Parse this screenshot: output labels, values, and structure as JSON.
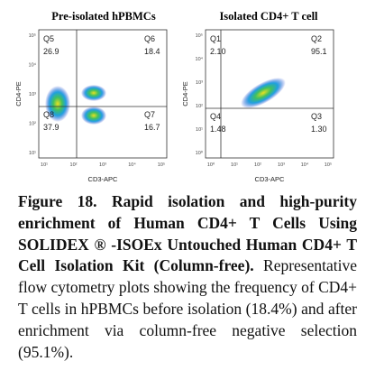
{
  "panels": [
    {
      "title": "Pre-isolated hPBMCs",
      "x_label": "CD3-APC",
      "y_label": "CD4-PE",
      "x_ticks": [
        "10¹",
        "10²",
        "10³",
        "10⁴",
        "10⁵"
      ],
      "y_ticks": [
        "10¹",
        "10²",
        "10³",
        "10⁴",
        "10⁵"
      ],
      "quadrants": [
        {
          "name": "Q5",
          "value": "26.9"
        },
        {
          "name": "Q6",
          "value": "18.4"
        },
        {
          "name": "Q8",
          "value": "37.9"
        },
        {
          "name": "Q7",
          "value": "16.7"
        }
      ]
    },
    {
      "title": "Isolated CD4+ T cell",
      "x_label": "CD3-APC",
      "y_label": "CD4-PE",
      "x_ticks": [
        "10⁰",
        "10¹",
        "10²",
        "10³",
        "10⁴",
        "10⁵"
      ],
      "y_ticks": [
        "10⁰",
        "10¹",
        "10²",
        "10³",
        "10⁴",
        "10⁵"
      ],
      "quadrants": [
        {
          "name": "Q1",
          "value": "2.10"
        },
        {
          "name": "Q2",
          "value": "95.1"
        },
        {
          "name": "Q4",
          "value": "1.48"
        },
        {
          "name": "Q3",
          "value": "1.30"
        }
      ]
    }
  ],
  "caption": {
    "label": "Figure 18.",
    "bold": "Rapid isolation and high-purity enrichment of Human CD4+ T Cells Using SOLIDEX ® -ISOEx Untouched Human CD4+ T Cell Isolation Kit (Column-free).",
    "text": "Representative flow cytometry plots showing the frequency of CD4+ T cells in hPBMCs before isolation (18.4%) and after enrichment via column-free negative selection (95.1%)."
  }
}
